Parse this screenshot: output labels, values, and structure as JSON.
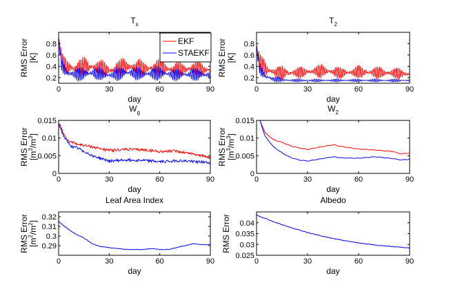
{
  "chart_data": [
    {
      "type": "line",
      "title": "T",
      "title_subscript": "s",
      "xlabel": "day",
      "ylabel": "RMS Error",
      "ylabel2": "[K]",
      "xlim": [
        0,
        90
      ],
      "ylim": [
        0.1,
        1.0
      ],
      "xticks": [
        0,
        30,
        60,
        90
      ],
      "yticks": [
        0.2,
        0.4,
        0.6,
        0.8
      ],
      "ytick_labels": [
        "0.2",
        "0.4",
        "0.6",
        "0.8"
      ],
      "legend": {
        "position": "top-right",
        "entries": [
          "EKF",
          "STAEKF"
        ]
      },
      "series": [
        {
          "name": "EKF",
          "color": "#ff0000",
          "shape": "oscillating",
          "x": [
            0,
            2,
            5,
            10,
            20,
            30,
            40,
            50,
            60,
            70,
            80,
            90
          ],
          "mean": [
            0.9,
            0.5,
            0.38,
            0.36,
            0.4,
            0.32,
            0.4,
            0.35,
            0.38,
            0.33,
            0.36,
            0.33
          ],
          "amp": [
            0.05,
            0.15,
            0.18,
            0.2,
            0.2,
            0.16,
            0.2,
            0.18,
            0.2,
            0.17,
            0.18,
            0.16
          ]
        },
        {
          "name": "STAEKF",
          "color": "#0000ff",
          "shape": "oscillating",
          "x": [
            0,
            2,
            5,
            10,
            20,
            30,
            40,
            50,
            60,
            70,
            80,
            90
          ],
          "mean": [
            0.85,
            0.4,
            0.28,
            0.26,
            0.28,
            0.24,
            0.29,
            0.26,
            0.28,
            0.25,
            0.26,
            0.24
          ],
          "amp": [
            0.05,
            0.15,
            0.15,
            0.14,
            0.15,
            0.12,
            0.15,
            0.13,
            0.15,
            0.12,
            0.13,
            0.11
          ]
        }
      ]
    },
    {
      "type": "line",
      "title": "T",
      "title_subscript": "2",
      "xlabel": "day",
      "ylabel": "RMS Error",
      "ylabel2": "[K]",
      "xlim": [
        0,
        90
      ],
      "ylim": [
        0.1,
        1.0
      ],
      "xticks": [
        0,
        30,
        60,
        90
      ],
      "yticks": [
        0.2,
        0.4,
        0.6,
        0.8
      ],
      "ytick_labels": [
        "0.2",
        "0.4",
        "0.6",
        "0.8"
      ],
      "series": [
        {
          "name": "EKF",
          "color": "#ff0000",
          "shape": "oscillating",
          "x": [
            0,
            2,
            5,
            10,
            20,
            30,
            40,
            50,
            60,
            70,
            80,
            90
          ],
          "mean": [
            0.75,
            0.45,
            0.35,
            0.3,
            0.28,
            0.3,
            0.32,
            0.28,
            0.3,
            0.29,
            0.28,
            0.26
          ],
          "amp": [
            0.05,
            0.2,
            0.2,
            0.15,
            0.12,
            0.12,
            0.14,
            0.12,
            0.13,
            0.12,
            0.12,
            0.1
          ]
        },
        {
          "name": "STAEKF",
          "color": "#0000ff",
          "shape": "oscillating",
          "x": [
            0,
            2,
            5,
            10,
            20,
            30,
            40,
            50,
            60,
            70,
            80,
            90
          ],
          "mean": [
            0.7,
            0.35,
            0.22,
            0.17,
            0.15,
            0.15,
            0.15,
            0.15,
            0.15,
            0.15,
            0.15,
            0.15
          ],
          "amp": [
            0.05,
            0.15,
            0.1,
            0.06,
            0.03,
            0.03,
            0.03,
            0.03,
            0.03,
            0.03,
            0.03,
            0.03
          ]
        }
      ]
    },
    {
      "type": "line",
      "title": "W",
      "title_subscript": "g",
      "xlabel": "day",
      "ylabel": "RMS Error",
      "ylabel2": "[m³/m³]",
      "xlim": [
        0,
        90
      ],
      "ylim": [
        0,
        0.015
      ],
      "xticks": [
        0,
        30,
        60,
        90
      ],
      "yticks": [
        0,
        0.005,
        0.01,
        0.015
      ],
      "ytick_labels": [
        "0",
        "0.005",
        "0.01",
        "0.015"
      ],
      "series": [
        {
          "name": "EKF",
          "color": "#ff0000",
          "shape": "noisy",
          "x": [
            0,
            1,
            3,
            5,
            8,
            12,
            20,
            30,
            40,
            50,
            60,
            70,
            80,
            90
          ],
          "y": [
            0.014,
            0.0135,
            0.011,
            0.0095,
            0.0088,
            0.0082,
            0.0075,
            0.0065,
            0.0068,
            0.0067,
            0.0062,
            0.0063,
            0.0055,
            0.0045
          ]
        },
        {
          "name": "STAEKF",
          "color": "#0000ff",
          "shape": "noisy",
          "x": [
            0,
            1,
            3,
            5,
            8,
            12,
            20,
            30,
            40,
            50,
            60,
            70,
            80,
            90
          ],
          "y": [
            0.014,
            0.013,
            0.0105,
            0.009,
            0.0075,
            0.007,
            0.005,
            0.0035,
            0.0038,
            0.0037,
            0.0033,
            0.0036,
            0.0034,
            0.003
          ]
        }
      ]
    },
    {
      "type": "line",
      "title": "W",
      "title_subscript": "2",
      "xlabel": "day",
      "ylabel": "RMS Error",
      "ylabel2": "[m³/m³]",
      "xlim": [
        0,
        90
      ],
      "ylim": [
        0,
        0.015
      ],
      "xticks": [
        0,
        30,
        60,
        90
      ],
      "yticks": [
        0,
        0.005,
        0.01,
        0.015
      ],
      "ytick_labels": [
        "0",
        "0.005",
        "0.01",
        "0.015"
      ],
      "series": [
        {
          "name": "EKF",
          "color": "#ff0000",
          "shape": "smooth",
          "x": [
            2,
            5,
            10,
            15,
            20,
            25,
            30,
            40,
            45,
            50,
            60,
            70,
            80,
            85,
            90
          ],
          "y": [
            0.015,
            0.0115,
            0.0095,
            0.0088,
            0.0078,
            0.0072,
            0.0068,
            0.0077,
            0.0081,
            0.0076,
            0.0069,
            0.0066,
            0.0062,
            0.0055,
            0.0058
          ]
        },
        {
          "name": "STAEKF",
          "color": "#0000ff",
          "shape": "smooth",
          "x": [
            2,
            5,
            10,
            15,
            20,
            25,
            30,
            40,
            45,
            50,
            60,
            70,
            80,
            85,
            90
          ],
          "y": [
            0.015,
            0.0105,
            0.0075,
            0.0058,
            0.0045,
            0.0038,
            0.0035,
            0.0043,
            0.0047,
            0.0044,
            0.0043,
            0.0047,
            0.0042,
            0.0038,
            0.004
          ]
        }
      ]
    },
    {
      "type": "line",
      "title": "Leaf Area Index",
      "xlabel": "day",
      "ylabel": "RMS Error",
      "ylabel2": "[m²/m²]",
      "xlim": [
        0,
        90
      ],
      "ylim": [
        0.28,
        0.325
      ],
      "xticks": [
        0,
        30,
        60,
        90
      ],
      "yticks": [
        0.29,
        0.3,
        0.31,
        0.32
      ],
      "ytick_labels": [
        "0.29",
        "0.3",
        "0.31",
        "0.32"
      ],
      "series": [
        {
          "name": "STAEKF",
          "color": "#0000ff",
          "shape": "stepped",
          "x": [
            0,
            5,
            10,
            15,
            20,
            25,
            30,
            35,
            40,
            50,
            55,
            60,
            65,
            70,
            75,
            80,
            85,
            90
          ],
          "y": [
            0.315,
            0.308,
            0.302,
            0.298,
            0.292,
            0.289,
            0.288,
            0.287,
            0.286,
            0.286,
            0.287,
            0.286,
            0.286,
            0.288,
            0.29,
            0.292,
            0.291,
            0.291
          ]
        }
      ]
    },
    {
      "type": "line",
      "title": "Albedo",
      "xlabel": "day",
      "ylabel": "RMS Error",
      "xlim": [
        0,
        90
      ],
      "ylim": [
        0.025,
        0.045
      ],
      "xticks": [
        0,
        30,
        60,
        90
      ],
      "yticks": [
        0.025,
        0.03,
        0.035,
        0.04
      ],
      "ytick_labels": [
        "0.025",
        "0.03",
        "0.035",
        "0.04"
      ],
      "series": [
        {
          "name": "STAEKF",
          "color": "#0000ff",
          "shape": "stepped",
          "x": [
            0,
            5,
            10,
            20,
            30,
            40,
            50,
            60,
            70,
            80,
            90
          ],
          "y": [
            0.0435,
            0.042,
            0.0405,
            0.0378,
            0.0355,
            0.0336,
            0.032,
            0.0307,
            0.0297,
            0.029,
            0.0284
          ]
        }
      ]
    }
  ]
}
